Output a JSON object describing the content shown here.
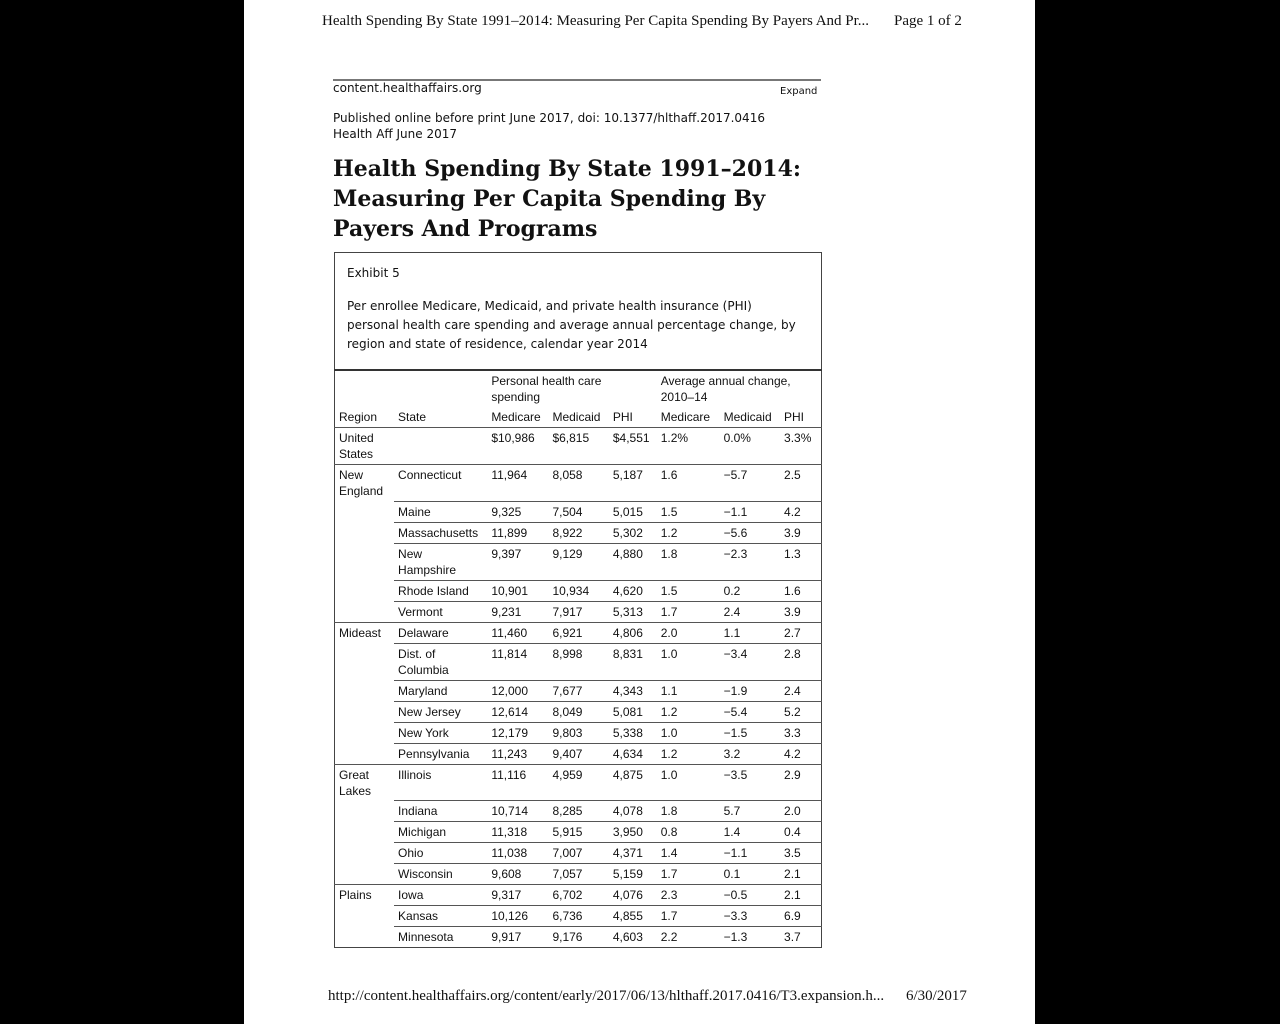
{
  "header": {
    "title": "Health Spending By State 1991–2014: Measuring Per Capita Spending By Payers And Pr...",
    "page": "Page 1 of 2"
  },
  "site": "content.healthaffairs.org",
  "expand": "Expand",
  "published": "Published online before print June 2017, doi: 10.1377/hlthaff.2017.0416",
  "citation": "Health Aff June 2017",
  "article_title": "Health Spending By State 1991–2014: Measuring Per Capita Spending By Payers And Programs",
  "exhibit": {
    "label": "Exhibit 5",
    "caption": "Per enrollee Medicare, Medicaid, and private health insurance (PHI) personal health care spending and average annual percentage change, by region and state of residence, calendar year 2014"
  },
  "table": {
    "groups": [
      "Personal health care spending",
      "Average annual change, 2010–14"
    ],
    "columns": [
      "Region",
      "State",
      "Medicare",
      "Medicaid",
      "PHI",
      "Medicare",
      "Medicaid",
      "PHI"
    ],
    "rows": [
      {
        "region": "United States",
        "values": [
          "$10,986",
          "$6,815",
          "$4,551",
          "1.2%",
          "0.0%",
          "3.3%"
        ]
      },
      {
        "region": "New England",
        "state": "Connecticut",
        "values": [
          "11,964",
          "8,058",
          "5,187",
          "1.6",
          "−5.7",
          "2.5"
        ]
      },
      {
        "state": "Maine",
        "values": [
          "9,325",
          "7,504",
          "5,015",
          "1.5",
          "−1.1",
          "4.2"
        ]
      },
      {
        "state": "Massachusetts",
        "values": [
          "11,899",
          "8,922",
          "5,302",
          "1.2",
          "−5.6",
          "3.9"
        ]
      },
      {
        "state": "New Hampshire",
        "values": [
          "9,397",
          "9,129",
          "4,880",
          "1.8",
          "−2.3",
          "1.3"
        ]
      },
      {
        "state": "Rhode Island",
        "values": [
          "10,901",
          "10,934",
          "4,620",
          "1.5",
          "0.2",
          "1.6"
        ]
      },
      {
        "state": "Vermont",
        "values": [
          "9,231",
          "7,917",
          "5,313",
          "1.7",
          "2.4",
          "3.9"
        ]
      },
      {
        "region": "Mideast",
        "state": "Delaware",
        "values": [
          "11,460",
          "6,921",
          "4,806",
          "2.0",
          "1.1",
          "2.7"
        ]
      },
      {
        "state": "Dist. of Columbia",
        "values": [
          "11,814",
          "8,998",
          "8,831",
          "1.0",
          "−3.4",
          "2.8"
        ]
      },
      {
        "state": "Maryland",
        "values": [
          "12,000",
          "7,677",
          "4,343",
          "1.1",
          "−1.9",
          "2.4"
        ]
      },
      {
        "state": "New Jersey",
        "values": [
          "12,614",
          "8,049",
          "5,081",
          "1.2",
          "−5.4",
          "5.2"
        ]
      },
      {
        "state": "New York",
        "values": [
          "12,179",
          "9,803",
          "5,338",
          "1.0",
          "−1.5",
          "3.3"
        ]
      },
      {
        "state": "Pennsylvania",
        "values": [
          "11,243",
          "9,407",
          "4,634",
          "1.2",
          "3.2",
          "4.2"
        ]
      },
      {
        "region": "Great Lakes",
        "state": "Illinois",
        "values": [
          "11,116",
          "4,959",
          "4,875",
          "1.0",
          "−3.5",
          "2.9"
        ]
      },
      {
        "state": "Indiana",
        "values": [
          "10,714",
          "8,285",
          "4,078",
          "1.8",
          "5.7",
          "2.0"
        ]
      },
      {
        "state": "Michigan",
        "values": [
          "11,318",
          "5,915",
          "3,950",
          "0.8",
          "1.4",
          "0.4"
        ]
      },
      {
        "state": "Ohio",
        "values": [
          "11,038",
          "7,007",
          "4,371",
          "1.4",
          "−1.1",
          "3.5"
        ]
      },
      {
        "state": "Wisconsin",
        "values": [
          "9,608",
          "7,057",
          "5,159",
          "1.7",
          "0.1",
          "2.1"
        ]
      },
      {
        "region": "Plains",
        "state": "Iowa",
        "values": [
          "9,317",
          "6,702",
          "4,076",
          "2.3",
          "−0.5",
          "2.1"
        ]
      },
      {
        "state": "Kansas",
        "values": [
          "10,126",
          "6,736",
          "4,855",
          "1.7",
          "−3.3",
          "6.9"
        ]
      },
      {
        "state": "Minnesota",
        "values": [
          "9,917",
          "9,176",
          "4,603",
          "2.2",
          "−1.3",
          "3.7"
        ]
      }
    ]
  },
  "footer": {
    "url": "http://content.healthaffairs.org/content/early/2017/06/13/hlthaff.2017.0416/T3.expansion.h...",
    "date": "6/30/2017"
  }
}
